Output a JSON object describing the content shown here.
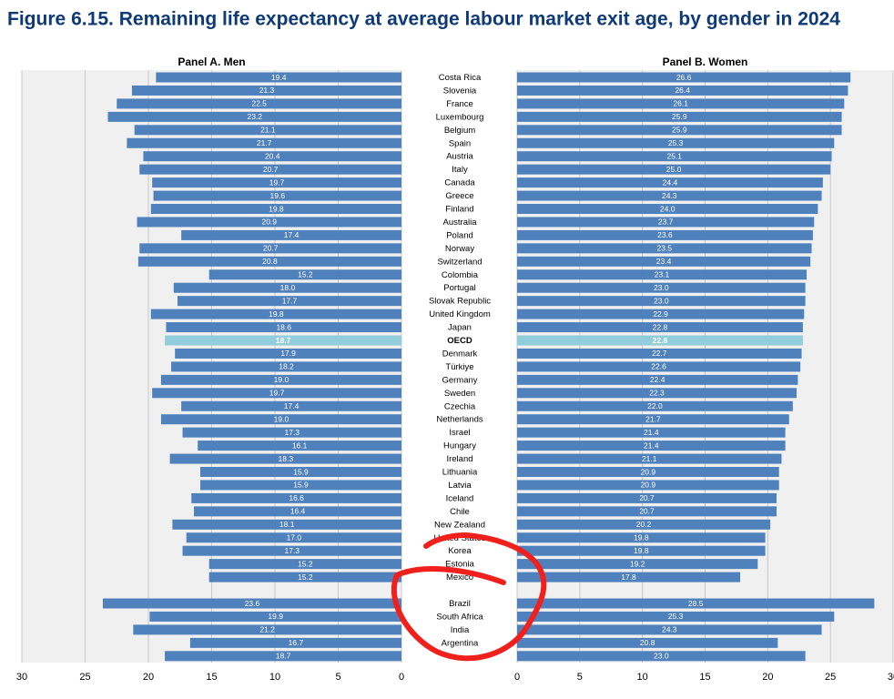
{
  "chart_data": {
    "type": "bar",
    "orientation": "horizontal",
    "title": "Figure 6.15. Remaining life expectancy at average labour market exit age, by gender in 2024",
    "categories": [
      "Costa Rica",
      "Slovenia",
      "France",
      "Luxembourg",
      "Belgium",
      "Spain",
      "Austria",
      "Italy",
      "Canada",
      "Greece",
      "Finland",
      "Australia",
      "Poland",
      "Norway",
      "Switzerland",
      "Colombia",
      "Portugal",
      "Slovak Republic",
      "United Kingdom",
      "Japan",
      "OECD",
      "Denmark",
      "Türkiye",
      "Germany",
      "Sweden",
      "Czechia",
      "Netherlands",
      "Israel",
      "Hungary",
      "Ireland",
      "Lithuania",
      "Latvia",
      "Iceland",
      "Chile",
      "New Zealand",
      "United States",
      "Korea",
      "Estonia",
      "Mexico",
      null,
      "Brazil",
      "South Africa",
      "India",
      "Argentina",
      null
    ],
    "highlight_category": "OECD",
    "highlight_color": "#92cddc",
    "grid": true,
    "series": [
      {
        "name": "Panel A. Men",
        "color": "#4f81bd",
        "reversed": true,
        "xlim": [
          0,
          30
        ],
        "xticks": [
          0,
          5,
          10,
          15,
          20,
          25,
          30
        ],
        "values": [
          19.4,
          21.3,
          22.5,
          23.2,
          21.1,
          21.7,
          20.4,
          20.7,
          19.7,
          19.6,
          19.8,
          20.9,
          17.4,
          20.7,
          20.8,
          15.2,
          18.0,
          17.7,
          19.8,
          18.6,
          18.7,
          17.9,
          18.2,
          19.0,
          19.7,
          17.4,
          19.0,
          17.3,
          16.1,
          18.3,
          15.9,
          15.9,
          16.6,
          16.4,
          18.1,
          17.0,
          17.3,
          15.2,
          15.2,
          null,
          23.6,
          19.9,
          21.2,
          16.7,
          18.7
        ],
        "value_labels": [
          "19.4",
          "21.3",
          "22.5",
          "23.2",
          "21.1",
          "21.7",
          "20.4",
          "20.7",
          "19.7",
          "19.6",
          "19.8",
          "20.9",
          "17.4",
          "20.7",
          "20.8",
          "15.2",
          "18.0",
          "17.7",
          "19.8",
          "18.6",
          "18.7",
          "17.9",
          "18.2",
          "19.0",
          "19.7",
          "17.4",
          "19.0",
          "17.3",
          "16.1",
          "18.3",
          "15.9",
          "15.9",
          "16.6",
          "16.4",
          "18.1",
          "17.0",
          "17.3",
          "15.2",
          "15.2",
          null,
          "23.6",
          "19.9",
          "21.2",
          "16.7",
          "18.7"
        ]
      },
      {
        "name": "Panel B. Women",
        "color": "#4f81bd",
        "reversed": false,
        "xlim": [
          0,
          30
        ],
        "xticks": [
          0,
          5,
          10,
          15,
          20,
          25,
          30
        ],
        "values": [
          26.6,
          26.4,
          26.1,
          25.9,
          25.9,
          25.3,
          25.1,
          25.0,
          24.4,
          24.3,
          24.0,
          23.7,
          23.6,
          23.5,
          23.4,
          23.1,
          23.0,
          23.0,
          22.9,
          22.8,
          22.8,
          22.7,
          22.6,
          22.4,
          22.3,
          22.0,
          21.7,
          21.4,
          21.4,
          21.1,
          20.9,
          20.9,
          20.7,
          20.7,
          20.2,
          19.8,
          19.8,
          19.2,
          17.8,
          null,
          28.5,
          25.3,
          24.3,
          20.8,
          23.0
        ],
        "value_labels": [
          "26.6",
          "26.4",
          "26.1",
          "25.9",
          "25.9",
          "25.3",
          "25.1",
          "25.0",
          "24.4",
          "24.3",
          "24.0",
          "23.7",
          "23.6",
          "23.5",
          "23.4",
          "23.1",
          "23.0",
          "23.0",
          "22.9",
          "22.8",
          "22.8",
          "22.7",
          "22.6",
          "22.4",
          "22.3",
          "22.0",
          "21.7",
          "21.4",
          "21.4",
          "21.1",
          "20.9",
          "20.9",
          "20.7",
          "20.7",
          "20.2",
          "19.8",
          "19.8",
          "19.2",
          "17.8",
          null,
          "28.5",
          "25.3",
          "24.3",
          "20.8",
          "23.0"
        ]
      }
    ]
  }
}
